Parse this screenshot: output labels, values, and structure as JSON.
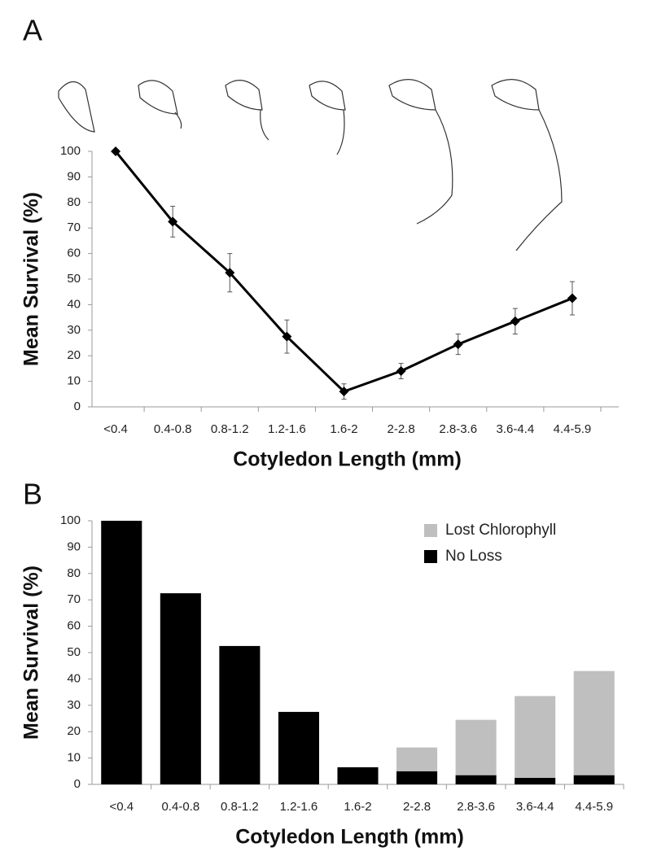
{
  "chart_data": [
    {
      "type": "line",
      "panel_label": "A",
      "y_label": "Mean Survival (%)",
      "x_label": "Cotyledon Length (mm)",
      "categories": [
        "<0.4",
        "0.4-0.8",
        "0.8-1.2",
        "1.2-1.6",
        "1.6-2",
        "2-2.8",
        "2.8-3.6",
        "3.6-4.4",
        "4.4-5.9"
      ],
      "values": [
        100,
        72.5,
        52.5,
        27.5,
        6,
        14,
        24.5,
        33.5,
        42.5
      ],
      "errors": [
        0,
        6,
        7.5,
        6.5,
        3,
        3,
        4,
        5,
        6.5
      ],
      "color": "#000000",
      "ylim": [
        0,
        100
      ],
      "yticks": [
        0,
        10,
        20,
        30,
        40,
        50,
        60,
        70,
        80,
        90,
        100
      ],
      "grid": false
    },
    {
      "type": "stacked_bar",
      "panel_label": "B",
      "y_label": "Mean Survival (%)",
      "x_label": "Cotyledon Length (mm)",
      "categories": [
        "<0.4",
        "0.4-0.8",
        "0.8-1.2",
        "1.2-1.6",
        "1.6-2",
        "2-2.8",
        "2.8-3.6",
        "3.6-4.4",
        "4.4-5.9"
      ],
      "series": [
        {
          "name": "No Loss",
          "color": "#000000",
          "values": [
            100,
            72.5,
            52.5,
            27.5,
            6.5,
            5,
            3.5,
            2.5,
            3.5
          ]
        },
        {
          "name": "Lost Chlorophyll",
          "color": "#bfbfbf",
          "values": [
            0,
            0,
            0,
            0,
            0,
            9,
            21,
            31,
            39.5
          ]
        }
      ],
      "legend": "top-right",
      "ylim": [
        0,
        100
      ],
      "yticks": [
        0,
        10,
        20,
        30,
        40,
        50,
        60,
        70,
        80,
        90,
        100
      ],
      "grid": false
    }
  ]
}
